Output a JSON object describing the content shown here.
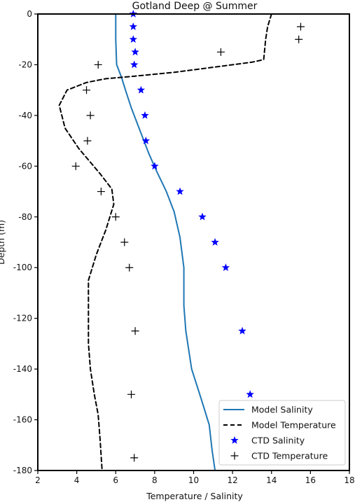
{
  "chart_data": {
    "type": "line",
    "title": "Gotland Deep @ Summer",
    "xlabel": "Temperature / Salinity",
    "ylabel": "Depth (m)",
    "xlim": [
      2,
      18
    ],
    "ylim": [
      -180,
      0
    ],
    "xticks": [
      "2",
      "4",
      "6",
      "8",
      "10",
      "12",
      "14",
      "16",
      "18"
    ],
    "yticks": [
      "0",
      "-20",
      "-40",
      "-60",
      "-80",
      "-100",
      "-120",
      "-140",
      "-160",
      "-180"
    ],
    "legend_position": "lower right",
    "grid": false,
    "series": [
      {
        "name": "Model Salinity",
        "style": "solid-line",
        "color": "#1f77b4",
        "points": [
          [
            6.0,
            0
          ],
          [
            6.0,
            -10
          ],
          [
            6.05,
            -20
          ],
          [
            6.3,
            -25
          ],
          [
            6.5,
            -30
          ],
          [
            6.8,
            -37
          ],
          [
            7.2,
            -45
          ],
          [
            7.7,
            -55
          ],
          [
            8.1,
            -62
          ],
          [
            8.6,
            -70
          ],
          [
            9.0,
            -78
          ],
          [
            9.3,
            -88
          ],
          [
            9.5,
            -100
          ],
          [
            9.5,
            -115
          ],
          [
            9.6,
            -125
          ],
          [
            9.9,
            -140
          ],
          [
            10.4,
            -152
          ],
          [
            10.8,
            -162
          ],
          [
            10.95,
            -172
          ],
          [
            11.1,
            -180
          ]
        ]
      },
      {
        "name": "Model Temperature",
        "style": "dashed-line",
        "color": "#000000",
        "points": [
          [
            14.0,
            0
          ],
          [
            13.8,
            -5
          ],
          [
            13.7,
            -10
          ],
          [
            13.6,
            -18
          ],
          [
            13.0,
            -19
          ],
          [
            11.0,
            -21
          ],
          [
            9.0,
            -23
          ],
          [
            7.0,
            -24.5
          ],
          [
            5.5,
            -25.5
          ],
          [
            4.5,
            -27
          ],
          [
            3.5,
            -30
          ],
          [
            3.1,
            -36
          ],
          [
            3.4,
            -45
          ],
          [
            4.1,
            -53
          ],
          [
            5.2,
            -63
          ],
          [
            5.8,
            -69
          ],
          [
            5.9,
            -75
          ],
          [
            5.5,
            -85
          ],
          [
            5.0,
            -95
          ],
          [
            4.6,
            -105
          ],
          [
            4.6,
            -114
          ],
          [
            4.6,
            -130
          ],
          [
            4.7,
            -140
          ],
          [
            4.9,
            -150
          ],
          [
            5.1,
            -158
          ],
          [
            5.2,
            -168
          ],
          [
            5.3,
            -180
          ]
        ]
      },
      {
        "name": "CTD Salinity",
        "style": "star-marker",
        "color": "#0000ff",
        "points": [
          [
            6.9,
            0
          ],
          [
            6.9,
            -5
          ],
          [
            6.9,
            -10
          ],
          [
            7.0,
            -15
          ],
          [
            6.95,
            -20
          ],
          [
            7.3,
            -30
          ],
          [
            7.5,
            -40
          ],
          [
            7.55,
            -50
          ],
          [
            8.0,
            -60
          ],
          [
            9.3,
            -70
          ],
          [
            10.45,
            -80
          ],
          [
            11.1,
            -90
          ],
          [
            11.65,
            -100
          ],
          [
            12.5,
            -125
          ],
          [
            12.9,
            -150
          ]
        ]
      },
      {
        "name": "CTD Temperature",
        "style": "plus-marker",
        "color": "#000000",
        "points": [
          [
            15.5,
            -5
          ],
          [
            15.4,
            -10
          ],
          [
            11.4,
            -15
          ],
          [
            5.1,
            -20
          ],
          [
            4.5,
            -30
          ],
          [
            4.7,
            -40
          ],
          [
            4.55,
            -50
          ],
          [
            3.95,
            -60
          ],
          [
            5.25,
            -70
          ],
          [
            6.0,
            -80
          ],
          [
            6.45,
            -90
          ],
          [
            6.7,
            -100
          ],
          [
            7.0,
            -125
          ],
          [
            6.8,
            -150
          ],
          [
            6.95,
            -175
          ]
        ]
      }
    ]
  }
}
